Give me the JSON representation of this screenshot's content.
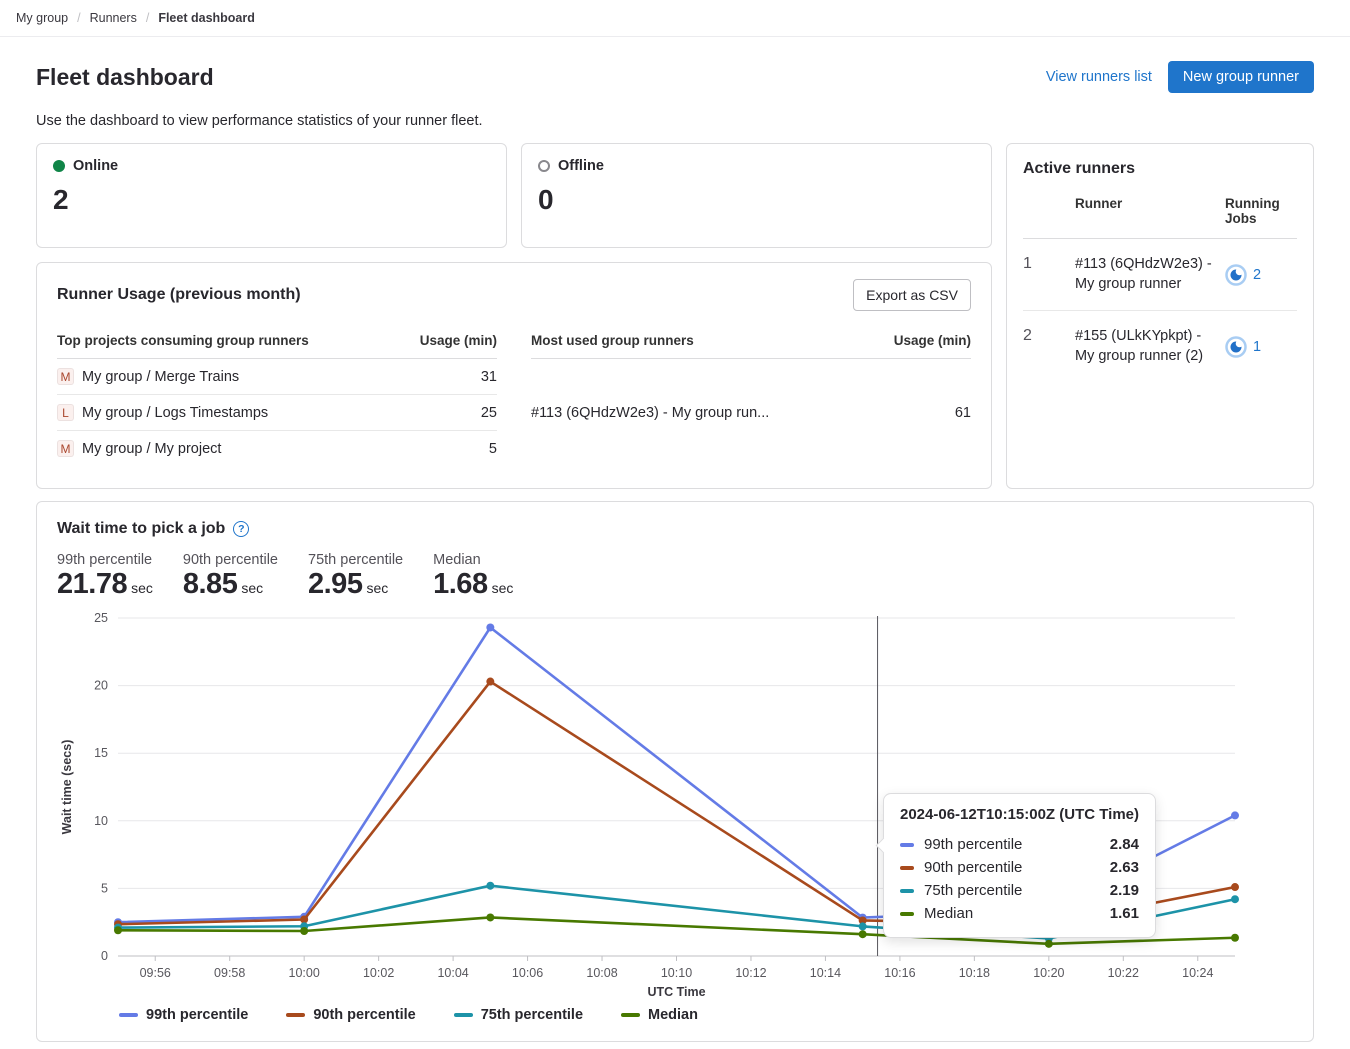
{
  "breadcrumb": {
    "items": [
      "My group",
      "Runners",
      "Fleet dashboard"
    ]
  },
  "header": {
    "title": "Fleet dashboard",
    "view_runners_link": "View runners list",
    "new_runner_button": "New group runner",
    "description": "Use the dashboard to view performance statistics of your runner fleet."
  },
  "colors": {
    "accent_blue": "#1f75cb",
    "online_green": "#108548"
  },
  "status_cards": {
    "online": {
      "label": "Online",
      "value": "2",
      "icon": "filled-circle"
    },
    "offline": {
      "label": "Offline",
      "value": "0",
      "icon": "outline-circle"
    }
  },
  "active_runners": {
    "title": "Active runners",
    "columns": {
      "runner": "Runner",
      "jobs": "Running Jobs"
    },
    "rows": [
      {
        "index": "1",
        "runner": "#113 (6QHdzW2e3) - My group runner",
        "jobs": "2",
        "icon": "status-running"
      },
      {
        "index": "2",
        "runner": "#155 (ULkKYpkpt) - My group runner (2)",
        "jobs": "1",
        "icon": "status-running"
      }
    ]
  },
  "runner_usage": {
    "title": "Runner Usage (previous month)",
    "export_button": "Export as CSV",
    "projects_table": {
      "header": "Top projects consuming group runners",
      "usage_header": "Usage (min)",
      "rows": [
        {
          "avatar": "M",
          "name": "My group / Merge Trains",
          "usage": "31"
        },
        {
          "avatar": "L",
          "name": "My group / Logs Timestamps",
          "usage": "25"
        },
        {
          "avatar": "M",
          "name": "My group / My project",
          "usage": "5"
        }
      ]
    },
    "runners_table": {
      "header": "Most used group runners",
      "usage_header": "Usage (min)",
      "rows": [
        {
          "name": "#113 (6QHdzW2e3) - My group run...",
          "usage": "61"
        }
      ]
    }
  },
  "wait_chart": {
    "title": "Wait time to pick a job",
    "help_icon": "question-mark-circle",
    "stats": [
      {
        "label": "99th percentile",
        "value": "21.78",
        "unit": "sec"
      },
      {
        "label": "90th percentile",
        "value": "8.85",
        "unit": "sec"
      },
      {
        "label": "75th percentile",
        "value": "2.95",
        "unit": "sec"
      },
      {
        "label": "Median",
        "value": "1.68",
        "unit": "sec"
      }
    ],
    "tooltip": {
      "title": "2024-06-12T10:15:00Z (UTC Time)",
      "rows": [
        {
          "label": "99th percentile",
          "value": "2.84"
        },
        {
          "label": "90th percentile",
          "value": "2.63"
        },
        {
          "label": "75th percentile",
          "value": "2.19"
        },
        {
          "label": "Median",
          "value": "1.61"
        }
      ]
    }
  },
  "chart_data": {
    "type": "line",
    "x": [
      "09:55",
      "10:00",
      "10:05",
      "10:15",
      "10:20",
      "10:25"
    ],
    "x_minutes": [
      0,
      5,
      10,
      20,
      25,
      30
    ],
    "series": [
      {
        "name": "99th percentile",
        "color": "#647be6",
        "values": [
          2.5,
          2.9,
          24.3,
          2.84,
          3.4,
          10.4
        ]
      },
      {
        "name": "90th percentile",
        "color": "#a84a1d",
        "values": [
          2.35,
          2.7,
          20.3,
          2.63,
          2.4,
          5.1
        ]
      },
      {
        "name": "75th percentile",
        "color": "#1d93a8",
        "values": [
          2.1,
          2.2,
          5.2,
          2.19,
          1.3,
          4.2
        ]
      },
      {
        "name": "Median",
        "color": "#487900",
        "values": [
          1.9,
          1.85,
          2.85,
          1.61,
          0.9,
          1.35
        ]
      }
    ],
    "title": "Wait time to pick a job",
    "xlabel": "UTC Time",
    "ylabel": "Wait time (secs)",
    "ylim": [
      0,
      25
    ],
    "yticks": [
      0,
      5,
      10,
      15,
      20,
      25
    ],
    "xticks": [
      "09:56",
      "09:58",
      "10:00",
      "10:02",
      "10:04",
      "10:06",
      "10:08",
      "10:10",
      "10:12",
      "10:14",
      "10:16",
      "10:18",
      "10:20",
      "10:22",
      "10:24"
    ],
    "xtick_minutes": [
      1,
      3,
      5,
      7,
      9,
      11,
      13,
      15,
      17,
      19,
      21,
      23,
      25,
      27,
      29
    ],
    "crosshair_minute": 20.4,
    "legend": [
      "99th percentile",
      "90th percentile",
      "75th percentile",
      "Median"
    ],
    "legend_position": "bottom",
    "grid": true
  }
}
